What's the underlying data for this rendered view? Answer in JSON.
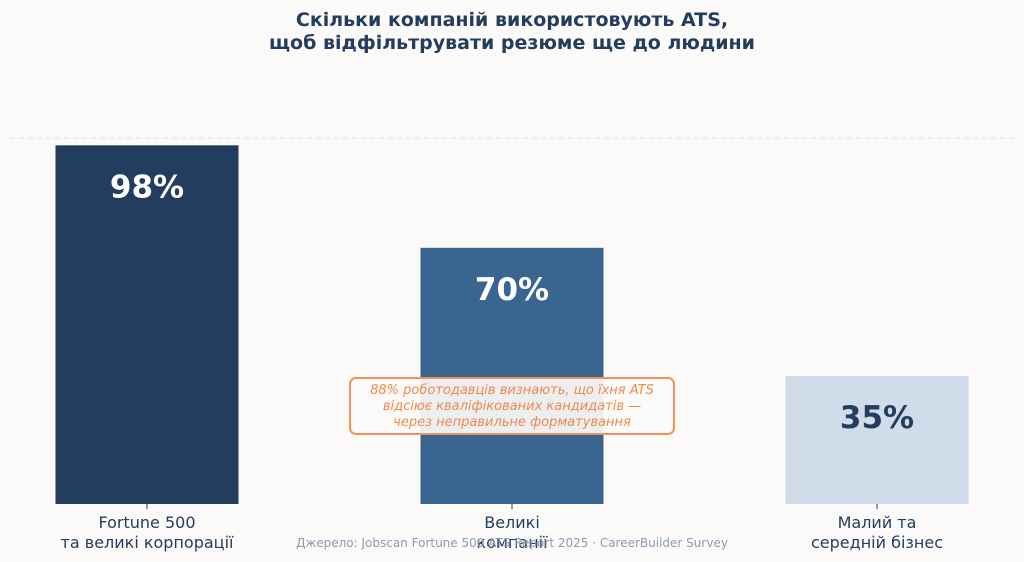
{
  "chart_data": {
    "type": "bar",
    "title": [
      "Скільки компаній використовують ATS,",
      "щоб відфільтрувати резюме ще до людини"
    ],
    "categories": [
      [
        "Fortune 500",
        "та великі корпорації"
      ],
      [
        "Великі",
        "компанії"
      ],
      [
        "Малий та",
        "середній бізнес"
      ]
    ],
    "values": [
      98,
      70,
      35
    ],
    "value_labels": [
      "98%",
      "70%",
      "35%"
    ],
    "ylim": [
      0,
      100
    ],
    "bar_colors": [
      "#233d5e",
      "#3a6591",
      "#d0dce9"
    ],
    "label_colors": [
      "#ffffff",
      "#ffffff",
      "#233d5e"
    ],
    "reference_line": 100,
    "annotation": [
      "88% роботодавців визнають, що їхня ATS",
      "відсіює кваліфікованих кандидатів —",
      "через неправильне форматування"
    ]
  },
  "source": "Джерело: Jobscan Fortune 500 ATS Report 2025 · CareerBuilder Survey",
  "colors": {
    "background": "#fcfaf8",
    "title": "#233d5e",
    "tick_label": "#233d5e",
    "callout": "#ee8a4a",
    "source": "#8c9bb2",
    "gridline": "#e6e2df"
  }
}
